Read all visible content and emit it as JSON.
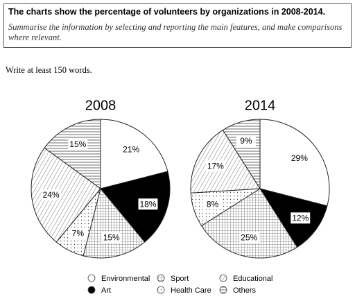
{
  "header": {
    "title": "The charts show the percentage of volunteers by organizations in 2008-2014.",
    "instruction": "Summarise the information by selecting and reporting the main features, and make comparisons where relevant.",
    "word_count": "Write at least 150 words."
  },
  "chart_data": [
    {
      "type": "pie",
      "title": "2008",
      "categories": [
        "Environmental",
        "Art",
        "Sport",
        "Health Care",
        "Educational",
        "Others"
      ],
      "values": [
        21,
        18,
        15,
        7,
        24,
        15
      ],
      "value_labels": [
        "21%",
        "18%",
        "15%",
        "7%",
        "24%",
        "15%"
      ],
      "colors": [
        "white",
        "black",
        "crosshatch",
        "dots",
        "diagonal",
        "horizontal"
      ]
    },
    {
      "type": "pie",
      "title": "2014",
      "categories": [
        "Environmental",
        "Art",
        "Sport",
        "Health Care",
        "Educational",
        "Others"
      ],
      "values": [
        29,
        12,
        25,
        8,
        17,
        9
      ],
      "value_labels": [
        "29%",
        "12%",
        "25%",
        "8%",
        "17%",
        "9%"
      ],
      "colors": [
        "white",
        "black",
        "crosshatch",
        "dots",
        "diagonal",
        "horizontal"
      ]
    }
  ]
}
